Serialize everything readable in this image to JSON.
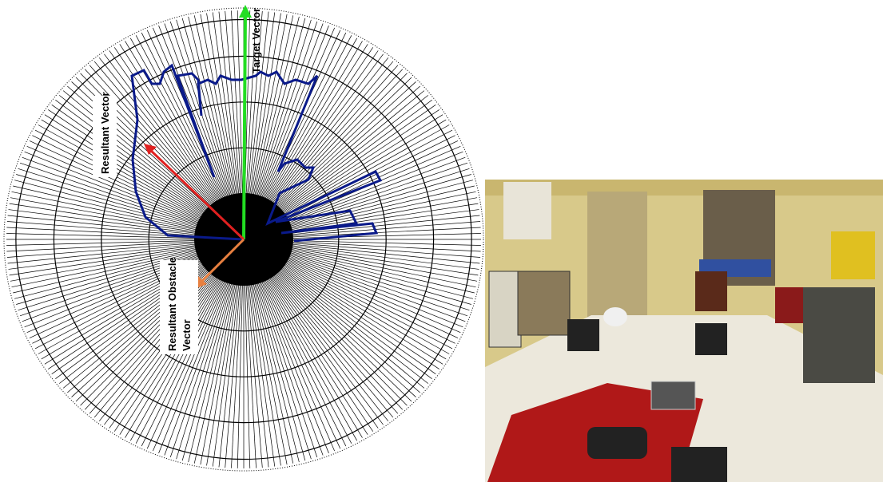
{
  "figure": {
    "labels": {
      "target": "Target Vector",
      "resultant": "Resultant Vector",
      "obstacle_line1": "Resultant Obstacle",
      "obstacle_line2": "Vector"
    }
  }
}
